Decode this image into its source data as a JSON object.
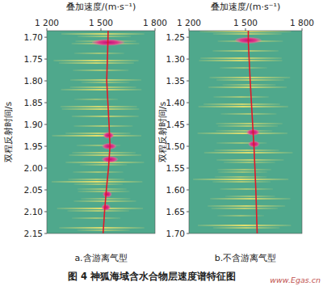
{
  "caption": "图 4 神狐海域含水合物层速度谱特征图",
  "watermark": "www.Egas.cn",
  "chart_data": [
    {
      "type": "line",
      "subtitle": "a.含游离气型",
      "x_label": "叠加速度/(m·s⁻¹)",
      "y_label": "双程反射时间/s",
      "orientation": "horizontal",
      "color": "#e0182a",
      "grid": false,
      "xlim": [
        1200,
        1800
      ],
      "xticks": [
        {
          "value": 1200,
          "label": "1 200"
        },
        {
          "value": 1500,
          "label": "1 500"
        },
        {
          "value": 1800,
          "label": "1 800"
        }
      ],
      "ylim": [
        1.685,
        2.15
      ],
      "yticks": [
        {
          "value": 1.7,
          "label": "1.70"
        },
        1.75,
        {
          "value": 1.8,
          "label": "1.80"
        },
        1.85,
        {
          "value": 1.9,
          "label": "1.90"
        },
        1.95,
        {
          "value": 2,
          "label": "2.00"
        },
        2.05,
        {
          "value": 2.1,
          "label": "2.10"
        },
        2.15
      ],
      "y": [
        1.685,
        1.72,
        1.8,
        1.9,
        1.95,
        2.0,
        2.05,
        2.1,
        2.15
      ],
      "values": [
        1540,
        1538,
        1532,
        1545,
        1550,
        1542,
        1530,
        1520,
        1512
      ],
      "peaks": {
        "times": [
          1.712,
          1.925,
          1.95,
          1.98,
          2.06,
          2.09
        ],
        "velocities": [
          1540,
          1542,
          1546,
          1550,
          1535,
          1528
        ],
        "widths": [
          90,
          30,
          40,
          45,
          25,
          25
        ]
      }
    },
    {
      "type": "line",
      "subtitle": "b.不含游离气型",
      "x_label": "叠加速度/(m·s⁻¹)",
      "y_label": "双程反射时间/s",
      "orientation": "horizontal",
      "color": "#e0182a",
      "grid": false,
      "xlim": [
        1200,
        1800
      ],
      "xticks": [
        {
          "value": 1200,
          "label": "1 200"
        },
        {
          "value": 1500,
          "label": "1 500"
        },
        {
          "value": 1800,
          "label": "1 800"
        }
      ],
      "ylim": [
        1.235,
        1.7
      ],
      "yticks": [
        1.25,
        {
          "value": 1.3,
          "label": "1.30"
        },
        1.35,
        {
          "value": 1.4,
          "label": "1.40"
        },
        1.45,
        {
          "value": 1.5,
          "label": "1.50"
        },
        1.55,
        {
          "value": 1.6,
          "label": "1.60"
        },
        1.65,
        {
          "value": 1.7,
          "label": "1.70"
        }
      ],
      "y": [
        1.235,
        1.26,
        1.35,
        1.45,
        1.5,
        1.55,
        1.6,
        1.7
      ],
      "values": [
        1515,
        1515,
        1525,
        1538,
        1545,
        1550,
        1555,
        1562
      ],
      "peaks": {
        "times": [
          1.257,
          1.468,
          1.495
        ],
        "velocities": [
          1515,
          1540,
          1545
        ],
        "widths": [
          70,
          35,
          30
        ]
      }
    }
  ]
}
